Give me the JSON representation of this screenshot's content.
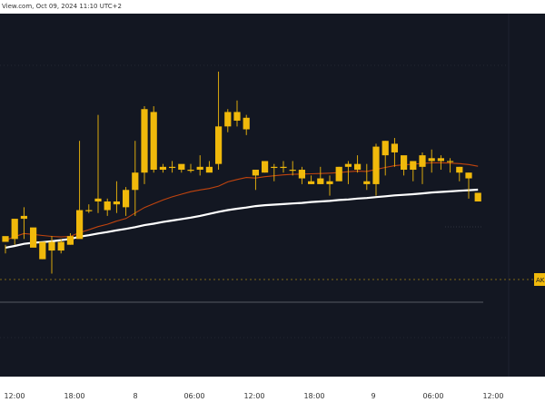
{
  "header": {
    "watermark_text": "View.com, Oct 09, 2024 11:10 UTC+2"
  },
  "price_tag": {
    "label": "AK",
    "color": "#f0b90b"
  },
  "colors": {
    "background": "#131722",
    "candle": "#f0b90b",
    "ema_fast": "#c1440e",
    "ema_slow": "#ffffff",
    "axis_text": "#d1d4dc"
  },
  "chart_data": {
    "type": "candlestick",
    "title": "",
    "xlabel": "",
    "ylabel": "",
    "ylim": [
      0,
      100
    ],
    "x_ticks": [
      "12:00",
      "18:00",
      "8",
      "06:00",
      "12:00",
      "18:00",
      "9",
      "06:00",
      "12:00"
    ],
    "candles": [
      [
        36,
        38,
        35,
        32
      ],
      [
        37,
        44,
        43,
        35
      ],
      [
        44,
        45,
        48,
        37
      ],
      [
        34,
        41,
        40,
        35
      ],
      [
        30,
        36,
        34,
        30
      ],
      [
        33,
        36,
        38,
        25
      ],
      [
        33,
        36,
        37,
        32
      ],
      [
        35,
        38,
        39,
        35
      ],
      [
        37,
        47,
        71,
        47
      ],
      [
        47,
        47,
        49,
        46
      ],
      [
        50,
        51,
        80,
        46
      ],
      [
        47,
        50,
        51,
        45
      ],
      [
        50,
        49,
        57,
        46
      ],
      [
        48,
        54,
        55,
        45
      ],
      [
        54,
        60,
        71,
        45
      ],
      [
        60,
        82,
        83,
        56
      ],
      [
        81,
        61,
        83,
        60
      ],
      [
        61,
        62,
        63,
        60
      ],
      [
        62,
        62,
        64,
        60
      ],
      [
        61,
        63,
        62,
        60
      ],
      [
        61,
        61,
        63,
        60
      ],
      [
        61,
        62,
        66,
        59
      ],
      [
        62,
        60,
        64,
        61
      ],
      [
        63,
        76,
        95,
        61
      ],
      [
        76,
        81,
        82,
        74
      ],
      [
        81,
        78,
        85,
        76
      ],
      [
        79,
        75,
        80,
        73
      ],
      [
        59,
        61,
        60,
        54
      ],
      [
        60,
        64,
        62,
        60
      ],
      [
        62,
        62,
        63,
        57
      ],
      [
        62,
        62,
        64,
        60
      ],
      [
        61,
        61,
        64,
        59
      ],
      [
        61,
        58,
        62,
        56
      ],
      [
        57,
        56,
        59,
        56
      ],
      [
        58,
        56,
        62,
        56
      ],
      [
        56,
        57,
        59,
        52
      ],
      [
        57,
        62,
        62,
        58
      ],
      [
        62,
        63,
        64,
        56
      ],
      [
        61,
        63,
        66,
        60
      ],
      [
        56,
        57,
        63,
        54
      ],
      [
        56,
        69,
        70,
        52
      ],
      [
        66,
        71,
        71,
        59
      ],
      [
        67,
        70,
        72,
        62
      ],
      [
        66,
        61,
        64,
        59
      ],
      [
        61,
        64,
        63,
        57
      ],
      [
        62,
        66,
        67,
        56
      ],
      [
        64,
        65,
        68,
        60
      ],
      [
        65,
        64,
        66,
        61
      ],
      [
        64,
        64,
        65,
        60
      ],
      [
        62,
        60,
        62,
        57
      ],
      [
        60,
        58,
        60,
        51
      ],
      [
        53,
        50,
        52,
        52
      ]
    ],
    "series": [
      {
        "values": [
          36.5,
          37.8,
          38.9,
          38.6,
          38.2,
          37.9,
          37.7,
          37.9,
          39.2,
          40.2,
          41.3,
          42.1,
          43.2,
          44.1,
          46.0,
          47.9,
          49.2,
          50.5,
          51.6,
          52.5,
          53.4,
          54.0,
          54.5,
          55.3,
          56.8,
          57.6,
          58.3,
          58.1,
          58.6,
          58.9,
          59.2,
          59.4,
          59.5,
          59.6,
          59.7,
          59.8,
          60.0,
          60.3,
          60.5,
          60.4,
          61.1,
          61.8,
          62.4,
          62.7,
          62.9,
          63.2,
          63.4,
          63.4,
          63.3,
          63.1,
          62.8,
          62.2
        ]
      },
      {
        "values": [
          34.0,
          34.6,
          35.3,
          35.7,
          35.9,
          36.2,
          36.6,
          37.0,
          37.8,
          38.3,
          38.9,
          39.4,
          40.0,
          40.5,
          41.1,
          41.8,
          42.3,
          42.9,
          43.4,
          43.9,
          44.4,
          45.0,
          45.7,
          46.4,
          47.0,
          47.5,
          47.9,
          48.4,
          48.7,
          48.9,
          49.1,
          49.3,
          49.5,
          49.8,
          50.0,
          50.2,
          50.5,
          50.7,
          51.0,
          51.2,
          51.5,
          51.8,
          52.1,
          52.3,
          52.5,
          52.8,
          53.1,
          53.3,
          53.5,
          53.7,
          53.9,
          54.1
        ]
      }
    ]
  }
}
